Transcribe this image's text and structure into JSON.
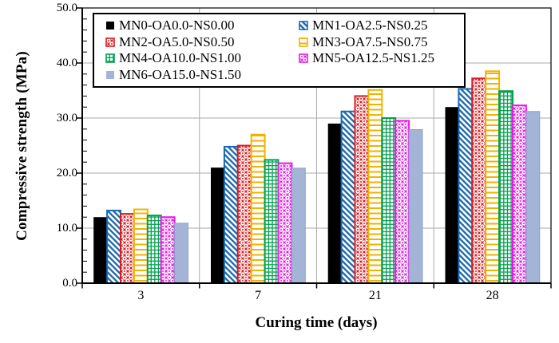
{
  "chart_data": {
    "type": "bar",
    "title": "",
    "xlabel": "Curing time (days)",
    "ylabel": "Compressive strength (MPa)",
    "categories": [
      "3",
      "7",
      "21",
      "28"
    ],
    "y_ticks": [
      "0.0",
      "10.0",
      "20.0",
      "30.0",
      "40.0",
      "50.0"
    ],
    "ylim": [
      0,
      50
    ],
    "y_minor_step": 2,
    "grid": {
      "horizontal": true,
      "vertical": true,
      "color": "#ababab"
    },
    "legend_position": "top-inside, two columns, black border box",
    "series": [
      {
        "name": "MN0-OA0.0-NS0.00",
        "color": "#000000",
        "pattern": "solid",
        "values": [
          12.0,
          21.0,
          29.0,
          32.0
        ]
      },
      {
        "name": "MN1-OA2.5-NS0.25",
        "color": "#1b69b0",
        "pattern": "diagonal-stripes",
        "values": [
          13.2,
          24.8,
          31.2,
          35.3
        ]
      },
      {
        "name": "MN2-OA5.0-NS0.50",
        "color": "#db1b20",
        "pattern": "dot-lattice",
        "values": [
          12.6,
          25.0,
          34.0,
          37.2
        ]
      },
      {
        "name": "MN3-OA7.5-NS0.75",
        "color": "#f2b200",
        "pattern": "horizontal-lines",
        "values": [
          13.4,
          27.0,
          35.1,
          38.5
        ]
      },
      {
        "name": "MN4-OA10.0-NS1.00",
        "color": "#00a24d",
        "pattern": "grid",
        "values": [
          12.3,
          22.4,
          30.0,
          34.9
        ]
      },
      {
        "name": "MN5-OA12.5-NS1.25",
        "color": "#e51be5",
        "pattern": "dot-lattice",
        "values": [
          12.0,
          21.8,
          29.5,
          32.3
        ]
      },
      {
        "name": "MN6-OA15.0-NS1.50",
        "color": "#a3b4d7",
        "pattern": "solid",
        "values": [
          10.9,
          20.9,
          27.9,
          31.2
        ]
      }
    ],
    "axis_color": "#000000"
  }
}
